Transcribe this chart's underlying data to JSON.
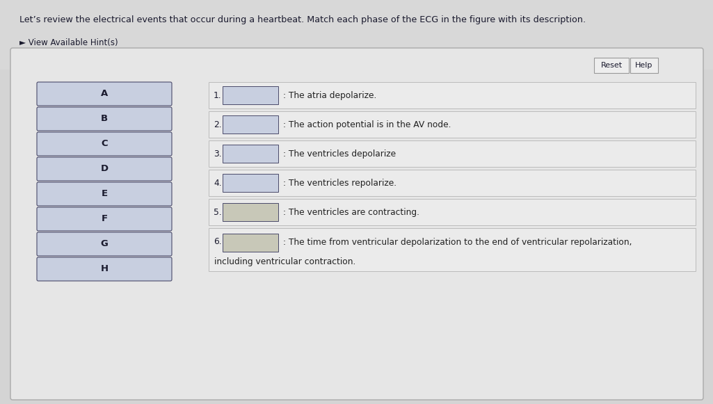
{
  "title_text": "Let’s review the electrical events that occur during a heartbeat. Match each phase of the ECG in the figure with its description.",
  "hint_text": "► View Available Hint(s)",
  "bg_color": "#d4d4d4",
  "panel_bg": "#e6e6e6",
  "left_labels": [
    "A",
    "B",
    "C",
    "D",
    "E",
    "F",
    "G",
    "H"
  ],
  "left_box_color": "#c8cfe0",
  "left_box_edge": "#4a4a6a",
  "right_items": [
    {
      "num": "1.",
      "desc": "The atria depolarize.",
      "multiline": false
    },
    {
      "num": "2.",
      "desc": "The action potential is in the AV node.",
      "multiline": false
    },
    {
      "num": "3.",
      "desc": "The ventricles depolarize",
      "multiline": false
    },
    {
      "num": "4.",
      "desc": "The ventricles repolarize.",
      "multiline": false
    },
    {
      "num": "5.",
      "desc": "The ventricles are contracting.",
      "multiline": false
    },
    {
      "num": "6.",
      "desc1": "The time from ventricular depolarization to the end of ventricular repolarization,",
      "desc2": "including ventricular contraction.",
      "multiline": true
    }
  ],
  "drop_box_color": "#c8cfe0",
  "drop_box_color_filled": "#c8c8b8",
  "button_color": "#eeeeee",
  "button_edge": "#999999",
  "row_bg": "#ebebeb",
  "row_edge": "#bbbbbb",
  "font_size_title": 9.2,
  "font_size_hint": 8.5,
  "font_size_labels": 9.5,
  "font_size_desc": 8.8,
  "font_size_num": 8.8,
  "font_size_btn": 8.0,
  "text_color": "#1a1a2e",
  "desc_color": "#222222",
  "panel_edge": "#aaaaaa",
  "outer_bg": "#c0c0c0"
}
